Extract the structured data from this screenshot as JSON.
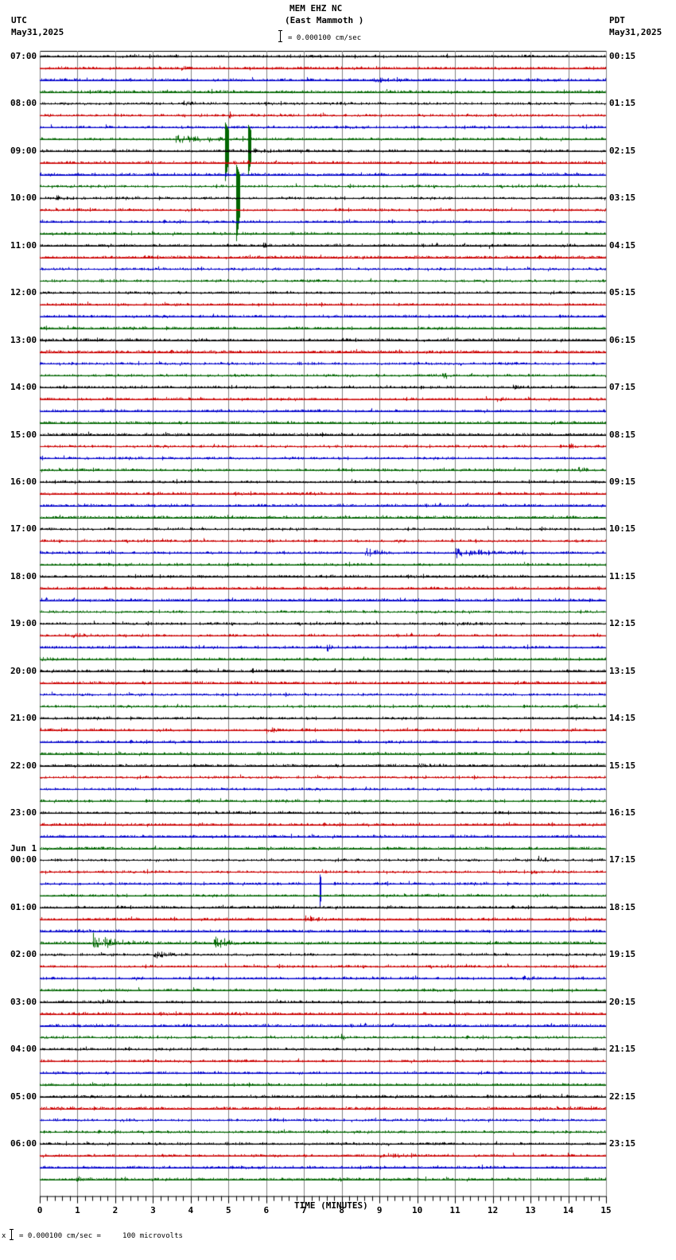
{
  "header": {
    "station": "MEM EHZ NC",
    "location": "(East Mammoth )",
    "scale_text": "= 0.000100 cm/sec",
    "left_tz": "UTC",
    "left_date": "May31,2025",
    "right_tz": "PDT",
    "right_date": "May31,2025"
  },
  "footer": {
    "prefix": "x",
    "scale_text": "= 0.000100 cm/sec =     100 microvolts"
  },
  "chart_data": {
    "type": "line",
    "title": "MEM EHZ NC (East Mammoth )",
    "subtitle": "Helicorder: 15-minute traces, 4 per hour, colors cycle black/red/blue/green",
    "xlabel": "TIME (MINUTES)",
    "ylabel": "",
    "xlim": [
      0,
      15
    ],
    "x_ticks": [
      "0",
      "1",
      "2",
      "3",
      "4",
      "5",
      "6",
      "7",
      "8",
      "9",
      "10",
      "11",
      "12",
      "13",
      "14",
      "15"
    ],
    "grid": true,
    "trace_colors": [
      "#000000",
      "#cc0000",
      "#0000cc",
      "#006600"
    ],
    "rows": 96,
    "left_labels": [
      {
        "row": 0,
        "text": "07:00"
      },
      {
        "row": 4,
        "text": "08:00"
      },
      {
        "row": 8,
        "text": "09:00"
      },
      {
        "row": 12,
        "text": "10:00"
      },
      {
        "row": 16,
        "text": "11:00"
      },
      {
        "row": 20,
        "text": "12:00"
      },
      {
        "row": 24,
        "text": "13:00"
      },
      {
        "row": 28,
        "text": "14:00"
      },
      {
        "row": 32,
        "text": "15:00"
      },
      {
        "row": 36,
        "text": "16:00"
      },
      {
        "row": 40,
        "text": "17:00"
      },
      {
        "row": 44,
        "text": "18:00"
      },
      {
        "row": 48,
        "text": "19:00"
      },
      {
        "row": 52,
        "text": "20:00"
      },
      {
        "row": 56,
        "text": "21:00"
      },
      {
        "row": 60,
        "text": "22:00"
      },
      {
        "row": 64,
        "text": "23:00"
      },
      {
        "row": 68,
        "text": "00:00",
        "date": "Jun 1"
      },
      {
        "row": 72,
        "text": "01:00"
      },
      {
        "row": 76,
        "text": "02:00"
      },
      {
        "row": 80,
        "text": "03:00"
      },
      {
        "row": 84,
        "text": "04:00"
      },
      {
        "row": 88,
        "text": "05:00"
      },
      {
        "row": 92,
        "text": "06:00"
      }
    ],
    "right_labels": [
      "00:15",
      "01:15",
      "02:15",
      "03:15",
      "04:15",
      "05:15",
      "06:15",
      "07:15",
      "08:15",
      "09:15",
      "10:15",
      "11:15",
      "12:15",
      "13:15",
      "14:15",
      "15:15",
      "16:15",
      "17:15",
      "18:15",
      "19:15",
      "20:15",
      "21:15",
      "22:15",
      "23:15"
    ],
    "events": [
      {
        "row": 1,
        "t": 3.7,
        "dur": 0.3,
        "amp": 6
      },
      {
        "row": 2,
        "t": 8.8,
        "dur": 1.0,
        "amp": 5
      },
      {
        "row": 4,
        "t": 3.8,
        "dur": 0.5,
        "amp": 4
      },
      {
        "row": 5,
        "t": 5.0,
        "dur": 0.15,
        "amp": 7
      },
      {
        "row": 5,
        "t": 5.4,
        "dur": 0.15,
        "amp": 10
      },
      {
        "row": 7,
        "t": 3.6,
        "dur": 2.2,
        "amp": 6
      },
      {
        "row": 7,
        "t": 4.9,
        "dur": 0.1,
        "amp": 55,
        "spike": true
      },
      {
        "row": 7,
        "t": 5.5,
        "dur": 0.1,
        "amp": 50,
        "spike": true
      },
      {
        "row": 8,
        "t": 5.5,
        "dur": 1.5,
        "amp": 4
      },
      {
        "row": 11,
        "t": 5.2,
        "dur": 0.1,
        "amp": 70,
        "spike": true
      },
      {
        "row": 12,
        "t": 0.4,
        "dur": 0.6,
        "amp": 5
      },
      {
        "row": 16,
        "t": 5.9,
        "dur": 0.4,
        "amp": 4
      },
      {
        "row": 16,
        "t": 11.9,
        "dur": 0.3,
        "amp": 5
      },
      {
        "row": 27,
        "t": 10.6,
        "dur": 0.4,
        "amp": 6
      },
      {
        "row": 28,
        "t": 12.5,
        "dur": 0.6,
        "amp": 4
      },
      {
        "row": 29,
        "t": 12.1,
        "dur": 0.4,
        "amp": 5
      },
      {
        "row": 33,
        "t": 14.0,
        "dur": 0.5,
        "amp": 4
      },
      {
        "row": 35,
        "t": 14.2,
        "dur": 0.4,
        "amp": 7
      },
      {
        "row": 42,
        "t": 8.6,
        "dur": 0.7,
        "amp": 10
      },
      {
        "row": 42,
        "t": 11.0,
        "dur": 2.0,
        "amp": 9
      },
      {
        "row": 48,
        "t": 11.0,
        "dur": 0.8,
        "amp": 3
      },
      {
        "row": 49,
        "t": 0.8,
        "dur": 1.0,
        "amp": 4
      },
      {
        "row": 50,
        "t": 7.6,
        "dur": 0.3,
        "amp": 8
      },
      {
        "row": 51,
        "t": 0.0,
        "dur": 0.9,
        "amp": 5
      },
      {
        "row": 52,
        "t": 5.6,
        "dur": 0.2,
        "amp": 5
      },
      {
        "row": 57,
        "t": 6.0,
        "dur": 0.5,
        "amp": 6
      },
      {
        "row": 60,
        "t": 10.0,
        "dur": 0.5,
        "amp": 4
      },
      {
        "row": 68,
        "t": 13.2,
        "dur": 0.6,
        "amp": 5
      },
      {
        "row": 69,
        "t": 13.0,
        "dur": 0.4,
        "amp": 4
      },
      {
        "row": 70,
        "t": 7.4,
        "dur": 0.05,
        "amp": 35,
        "spike": true
      },
      {
        "row": 73,
        "t": 7.0,
        "dur": 1.5,
        "amp": 4
      },
      {
        "row": 75,
        "t": 1.4,
        "dur": 1.4,
        "amp": 16
      },
      {
        "row": 75,
        "t": 4.6,
        "dur": 1.0,
        "amp": 12
      },
      {
        "row": 76,
        "t": 3.0,
        "dur": 0.9,
        "amp": 7
      },
      {
        "row": 78,
        "t": 12.8,
        "dur": 0.5,
        "amp": 5
      },
      {
        "row": 80,
        "t": 1.5,
        "dur": 0.6,
        "amp": 3
      },
      {
        "row": 83,
        "t": 7.9,
        "dur": 0.4,
        "amp": 3
      },
      {
        "row": 93,
        "t": 9.0,
        "dur": 1.3,
        "amp": 3
      },
      {
        "row": 95,
        "t": 0.9,
        "dur": 0.6,
        "amp": 4
      },
      {
        "row": 95,
        "t": 7.9,
        "dur": 0.5,
        "amp": 4
      }
    ]
  }
}
